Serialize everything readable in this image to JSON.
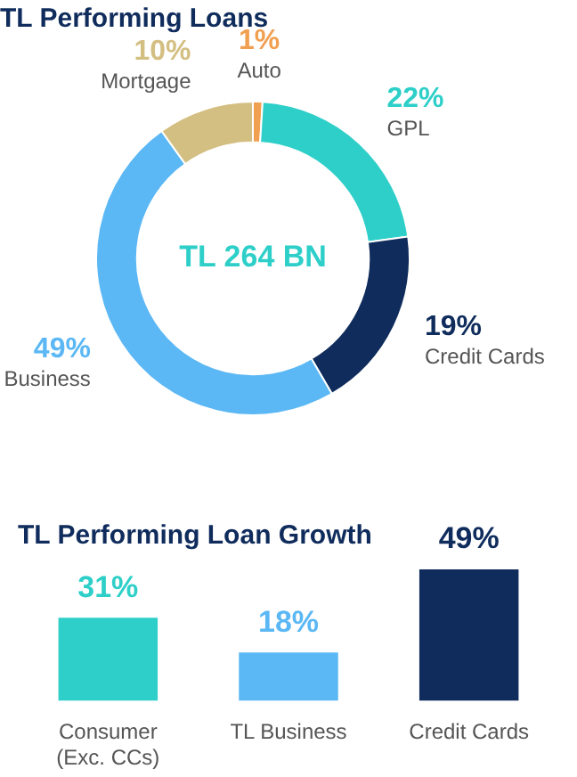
{
  "chart_data": [
    {
      "type": "donut",
      "title": "TL Performing Loans",
      "categories": [
        "Auto",
        "GPL",
        "Credit Cards",
        "Business",
        "Mortgage"
      ],
      "values": [
        1,
        22,
        19,
        49,
        10
      ],
      "colors": [
        "#f0a050",
        "#2ecfc9",
        "#0f2c5c",
        "#5bb8f5",
        "#d4bf82"
      ],
      "value_labels": [
        "1%",
        "22%",
        "19%",
        "49%",
        "10%"
      ],
      "annotations": [
        "TL 264 BN"
      ],
      "legend": false
    },
    {
      "type": "bar",
      "title": "TL Performing Loan Growth",
      "categories": [
        "Consumer (Exc. CCs)",
        "TL Business",
        "Credit Cards"
      ],
      "values": [
        31,
        18,
        49
      ],
      "colors": [
        "#2ecfc9",
        "#5bb8f5",
        "#0f2c5c"
      ],
      "value_labels": [
        "31%",
        "18%",
        "49%"
      ],
      "grid": false,
      "legend": false,
      "tick_labels": "x"
    }
  ]
}
